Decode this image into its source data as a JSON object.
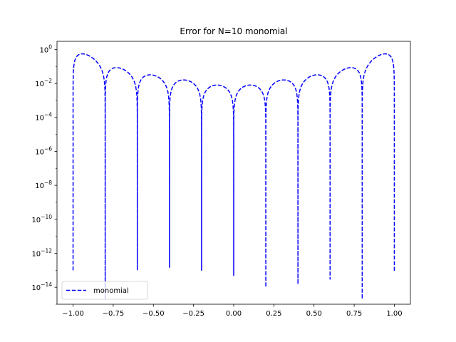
{
  "chart_data": {
    "type": "line",
    "title": "Error for N=10 monomial",
    "xlabel": "",
    "ylabel": "",
    "yscale": "log",
    "xlim": [
      -1.1,
      1.1
    ],
    "ylim": [
      1e-15,
      3
    ],
    "x_ticks": [
      -1.0,
      -0.75,
      -0.5,
      -0.25,
      0.0,
      0.25,
      0.5,
      0.75,
      1.0
    ],
    "x_tick_labels": [
      "−1.00",
      "−0.75",
      "−0.50",
      "−0.25",
      "0.00",
      "0.25",
      "0.50",
      "0.75",
      "1.00"
    ],
    "y_ticks": [
      1e-14,
      1e-12,
      1e-10,
      1e-08,
      1e-06,
      0.0001,
      0.01,
      1
    ],
    "y_tick_labels": [
      {
        "base": "10",
        "exp": "−14"
      },
      {
        "base": "10",
        "exp": "−12"
      },
      {
        "base": "10",
        "exp": "−10"
      },
      {
        "base": "10",
        "exp": "−8"
      },
      {
        "base": "10",
        "exp": "−6"
      },
      {
        "base": "10",
        "exp": "−4"
      },
      {
        "base": "10",
        "exp": "−2"
      },
      {
        "base": "10",
        "exp": "0"
      }
    ],
    "grid": false,
    "legend_position": "lower-left",
    "series": [
      {
        "name": "monomial",
        "color": "#0000ff",
        "style": "dashed",
        "nodes": [
          -1.0,
          -0.8,
          -0.6,
          -0.4,
          -0.2,
          0.0,
          0.2,
          0.4,
          0.6,
          0.8,
          1.0
        ],
        "node_errors": [
          1e-13,
          2e-15,
          1e-13,
          1.5e-13,
          1e-13,
          5e-14,
          1e-14,
          1.5e-14,
          3e-14,
          2e-15,
          8e-14
        ],
        "lobe_peaks": [
          0.55,
          0.085,
          0.032,
          0.016,
          0.008,
          0.008,
          0.016,
          0.032,
          0.085,
          0.55
        ]
      }
    ]
  }
}
